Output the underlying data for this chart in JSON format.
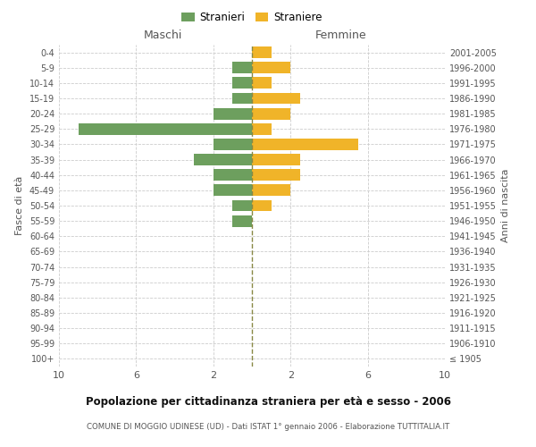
{
  "age_groups": [
    "100+",
    "95-99",
    "90-94",
    "85-89",
    "80-84",
    "75-79",
    "70-74",
    "65-69",
    "60-64",
    "55-59",
    "50-54",
    "45-49",
    "40-44",
    "35-39",
    "30-34",
    "25-29",
    "20-24",
    "15-19",
    "10-14",
    "5-9",
    "0-4"
  ],
  "birth_years": [
    "≤ 1905",
    "1906-1910",
    "1911-1915",
    "1916-1920",
    "1921-1925",
    "1926-1930",
    "1931-1935",
    "1936-1940",
    "1941-1945",
    "1946-1950",
    "1951-1955",
    "1956-1960",
    "1961-1965",
    "1966-1970",
    "1971-1975",
    "1976-1980",
    "1981-1985",
    "1986-1990",
    "1991-1995",
    "1996-2000",
    "2001-2005"
  ],
  "males": [
    0,
    0,
    0,
    0,
    0,
    0,
    0,
    0,
    0,
    1,
    1,
    2,
    2,
    3,
    2,
    9,
    2,
    1,
    1,
    1,
    0
  ],
  "females": [
    0,
    0,
    0,
    0,
    0,
    0,
    0,
    0,
    0,
    0,
    1,
    2,
    2.5,
    2.5,
    5.5,
    1,
    2,
    2.5,
    1,
    2,
    1
  ],
  "male_color": "#6d9f5e",
  "female_color": "#f0b429",
  "centerline_color": "#888844",
  "background_color": "#ffffff",
  "grid_color": "#cccccc",
  "text_color": "#555555",
  "title_color": "#111111",
  "title": "Popolazione per cittadinanza straniera per età e sesso - 2006",
  "subtitle": "COMUNE DI MOGGIO UDINESE (UD) - Dati ISTAT 1° gennaio 2006 - Elaborazione TUTTITALIA.IT",
  "ylabel_left": "Fasce di età",
  "ylabel_right": "Anni di nascita",
  "header_left": "Maschi",
  "header_right": "Femmine",
  "legend_male": "Stranieri",
  "legend_female": "Straniere",
  "xlim": 10
}
